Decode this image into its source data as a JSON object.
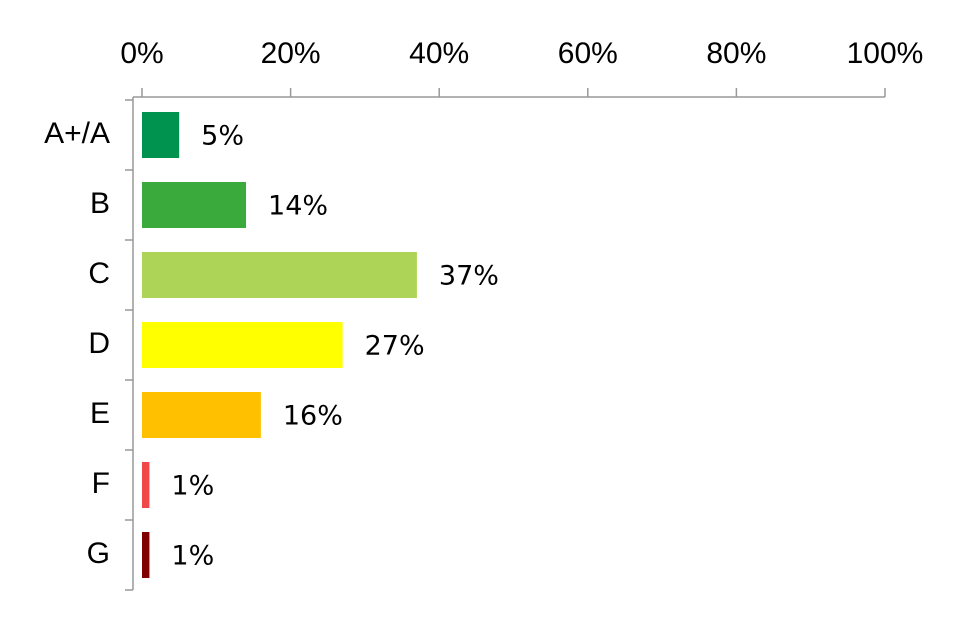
{
  "chart_data": {
    "type": "bar",
    "orientation": "horizontal",
    "categories": [
      "A+/A",
      "B",
      "C",
      "D",
      "E",
      "F",
      "G"
    ],
    "values": [
      5,
      14,
      37,
      27,
      16,
      1,
      1
    ],
    "value_labels": [
      "5%",
      "14%",
      "37%",
      "27%",
      "16%",
      "1%",
      "1%"
    ],
    "colors": [
      "#00924f",
      "#3aaa3c",
      "#add456",
      "#ffff00",
      "#ffc000",
      "#f04848",
      "#800000"
    ],
    "xlim": [
      0,
      100
    ],
    "xticks": [
      {
        "value": 0,
        "label": "0%"
      },
      {
        "value": 20,
        "label": "20%"
      },
      {
        "value": 40,
        "label": "40%"
      },
      {
        "value": 60,
        "label": "60%"
      },
      {
        "value": 80,
        "label": "80%"
      },
      {
        "value": 100,
        "label": "100%"
      }
    ],
    "grid": false
  }
}
